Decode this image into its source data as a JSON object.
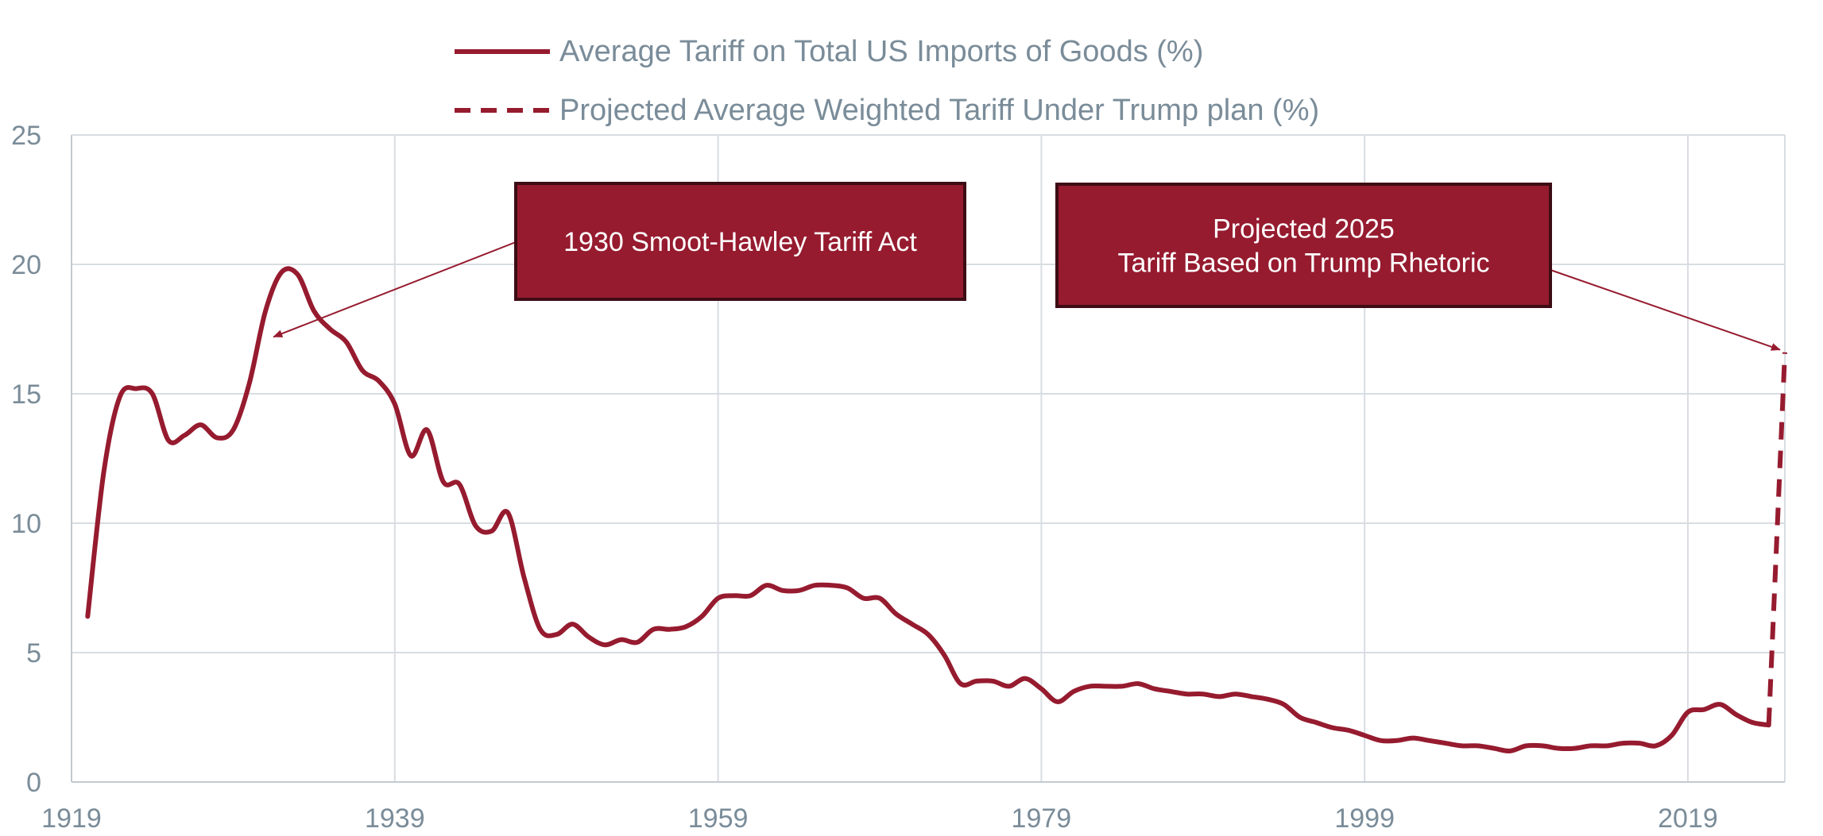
{
  "chart_data": {
    "type": "line",
    "title": "",
    "xlabel": "",
    "ylabel": "",
    "xlim": [
      1919,
      2025
    ],
    "ylim": [
      0,
      25
    ],
    "x_ticks": [
      "1919",
      "1939",
      "1959",
      "1979",
      "1999",
      "2019"
    ],
    "y_ticks": [
      "0",
      "5",
      "10",
      "15",
      "20",
      "25"
    ],
    "grid": true,
    "legend_position": "top",
    "colors": {
      "series": "#961b2f",
      "grid": "#d8dde2",
      "tick_text": "#7a8c99",
      "box_fill": "#961b2f",
      "box_border": "#3d0c14"
    },
    "series": [
      {
        "name": "Average Tariff on Total US Imports of Goods (%)",
        "style": "solid",
        "x": [
          1920,
          1921,
          1922,
          1923,
          1924,
          1925,
          1926,
          1927,
          1928,
          1929,
          1930,
          1931,
          1932,
          1933,
          1934,
          1935,
          1936,
          1937,
          1938,
          1939,
          1940,
          1941,
          1942,
          1943,
          1944,
          1945,
          1946,
          1947,
          1948,
          1949,
          1950,
          1951,
          1952,
          1953,
          1954,
          1955,
          1956,
          1957,
          1958,
          1959,
          1960,
          1961,
          1962,
          1963,
          1964,
          1965,
          1966,
          1967,
          1968,
          1969,
          1970,
          1971,
          1972,
          1973,
          1974,
          1975,
          1976,
          1977,
          1978,
          1979,
          1980,
          1981,
          1982,
          1983,
          1984,
          1985,
          1986,
          1987,
          1988,
          1989,
          1990,
          1991,
          1992,
          1993,
          1994,
          1995,
          1996,
          1997,
          1998,
          1999,
          2000,
          2001,
          2002,
          2003,
          2004,
          2005,
          2006,
          2007,
          2008,
          2009,
          2010,
          2011,
          2012,
          2013,
          2014,
          2015,
          2016,
          2017,
          2018,
          2019,
          2020,
          2021,
          2022,
          2023,
          2024
        ],
        "values": [
          6.4,
          12.0,
          14.9,
          15.2,
          15.0,
          13.2,
          13.4,
          13.8,
          13.3,
          13.6,
          15.4,
          18.2,
          19.7,
          19.6,
          18.2,
          17.5,
          17.0,
          15.9,
          15.5,
          14.6,
          12.6,
          13.6,
          11.6,
          11.5,
          9.9,
          9.7,
          10.4,
          7.9,
          5.9,
          5.7,
          6.1,
          5.6,
          5.3,
          5.5,
          5.4,
          5.9,
          5.9,
          6.0,
          6.4,
          7.1,
          7.2,
          7.2,
          7.6,
          7.4,
          7.4,
          7.6,
          7.6,
          7.5,
          7.1,
          7.1,
          6.5,
          6.1,
          5.7,
          4.9,
          3.8,
          3.9,
          3.9,
          3.7,
          4.0,
          3.6,
          3.1,
          3.5,
          3.7,
          3.7,
          3.7,
          3.8,
          3.6,
          3.5,
          3.4,
          3.4,
          3.3,
          3.4,
          3.3,
          3.2,
          3.0,
          2.5,
          2.3,
          2.1,
          2.0,
          1.8,
          1.6,
          1.6,
          1.7,
          1.6,
          1.5,
          1.4,
          1.4,
          1.3,
          1.2,
          1.4,
          1.4,
          1.3,
          1.3,
          1.4,
          1.4,
          1.5,
          1.5,
          1.4,
          1.8,
          2.7,
          2.8,
          3.0,
          2.6,
          2.3,
          2.2
        ]
      },
      {
        "name": "Projected Average Weighted Tariff Under Trump plan (%)",
        "style": "dashed",
        "x": [
          2024,
          2025
        ],
        "values": [
          2.2,
          16.6
        ]
      }
    ],
    "annotations": [
      {
        "lines": [
          "1930 Smoot-Hawley Tariff Act"
        ],
        "target": [
          1931.5,
          17.2
        ]
      },
      {
        "lines": [
          "Projected 2025",
          "Tariff Based on Trump Rhetoric"
        ],
        "target": [
          2024.7,
          16.7
        ]
      }
    ]
  }
}
